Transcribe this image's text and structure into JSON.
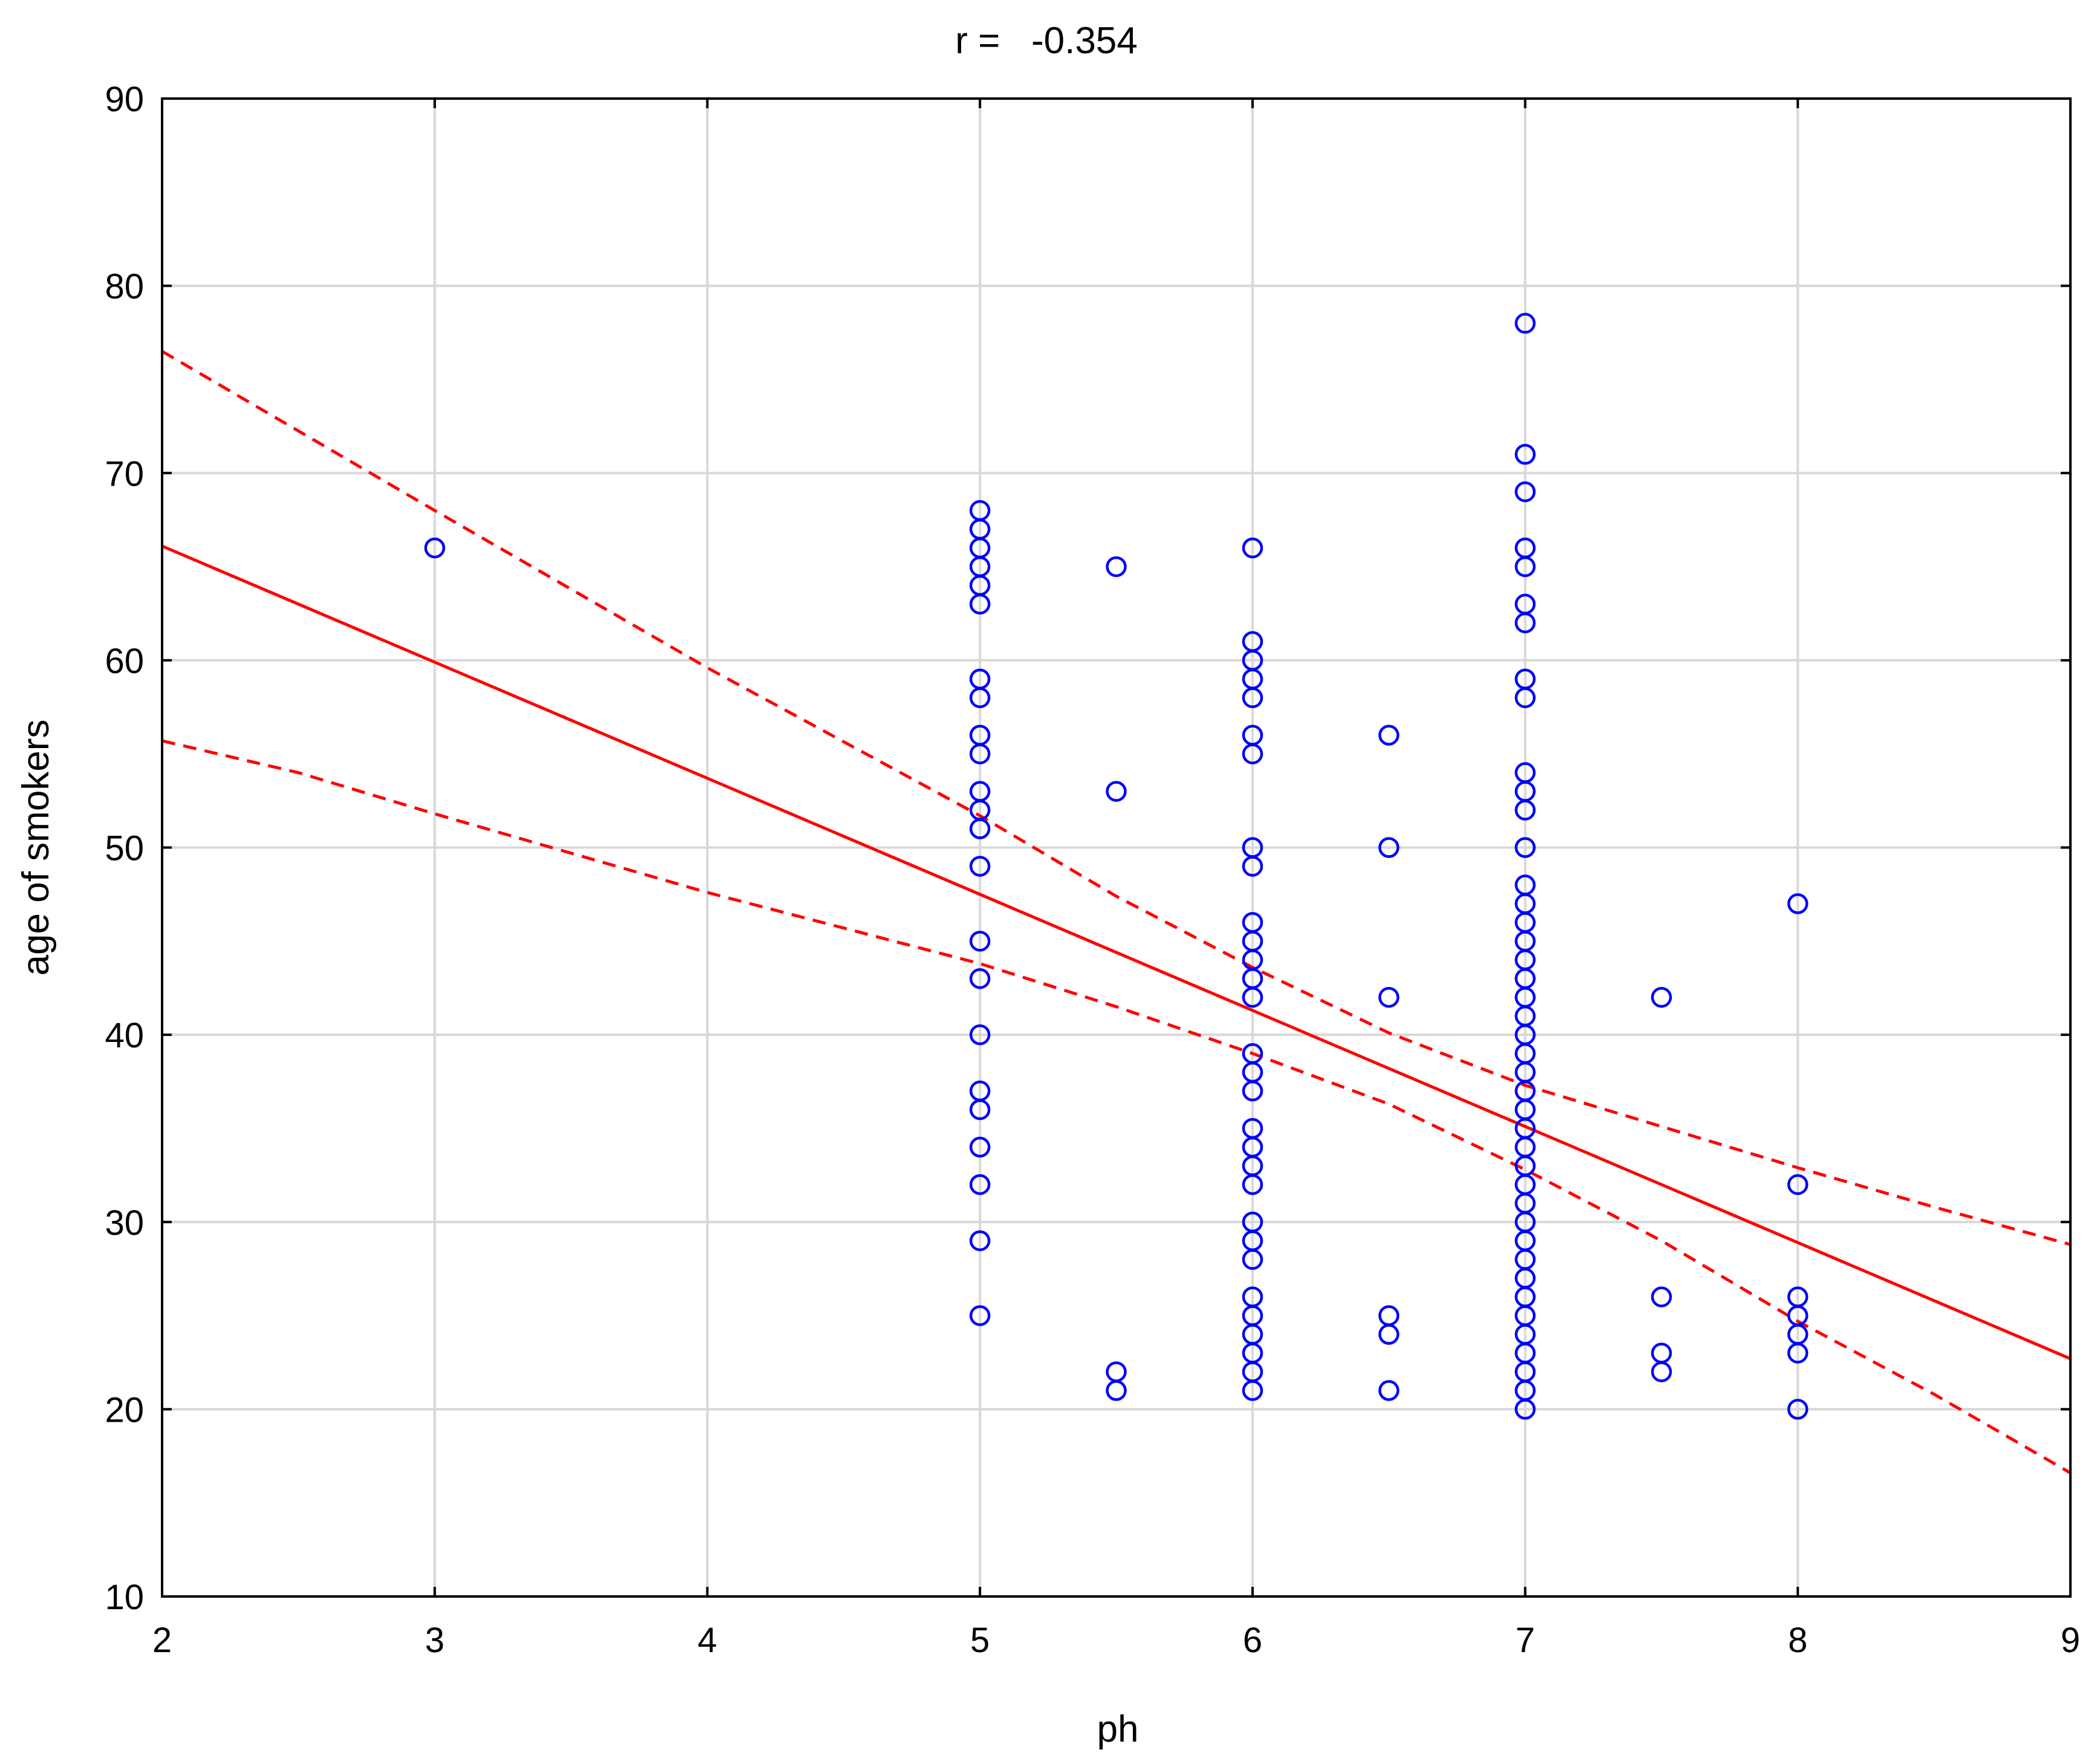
{
  "chart_data": {
    "type": "scatter",
    "title": "r =   -0.354",
    "xlabel": "ph",
    "ylabel": "age of smokers",
    "xlim": [
      2,
      9
    ],
    "ylim": [
      10,
      90
    ],
    "xticks": [
      2,
      3,
      4,
      5,
      6,
      7,
      8,
      9
    ],
    "yticks": [
      10,
      20,
      30,
      40,
      50,
      60,
      70,
      80,
      90
    ],
    "grid": true,
    "legend": "none",
    "colors": {
      "points": "#0000ff",
      "fit": "#ff0000",
      "grid": "#d8d8d8",
      "axes": "#000000"
    },
    "points": [
      [
        3,
        66
      ],
      [
        5,
        68
      ],
      [
        5,
        67
      ],
      [
        5,
        66
      ],
      [
        5,
        65
      ],
      [
        5,
        64
      ],
      [
        5,
        63
      ],
      [
        5,
        59
      ],
      [
        5,
        58
      ],
      [
        5,
        56
      ],
      [
        5,
        55
      ],
      [
        5,
        53
      ],
      [
        5,
        52
      ],
      [
        5,
        51
      ],
      [
        5,
        49
      ],
      [
        5,
        45
      ],
      [
        5,
        43
      ],
      [
        5,
        40
      ],
      [
        5,
        37
      ],
      [
        5,
        36
      ],
      [
        5,
        34
      ],
      [
        5,
        32
      ],
      [
        5,
        29
      ],
      [
        5,
        25
      ],
      [
        5.5,
        65
      ],
      [
        5.5,
        53
      ],
      [
        5.5,
        22
      ],
      [
        5.5,
        21
      ],
      [
        6,
        66
      ],
      [
        6,
        61
      ],
      [
        6,
        60
      ],
      [
        6,
        59
      ],
      [
        6,
        58
      ],
      [
        6,
        56
      ],
      [
        6,
        55
      ],
      [
        6,
        50
      ],
      [
        6,
        49
      ],
      [
        6,
        46
      ],
      [
        6,
        45
      ],
      [
        6,
        44
      ],
      [
        6,
        43
      ],
      [
        6,
        42
      ],
      [
        6,
        39
      ],
      [
        6,
        38
      ],
      [
        6,
        37
      ],
      [
        6,
        35
      ],
      [
        6,
        34
      ],
      [
        6,
        33
      ],
      [
        6,
        32
      ],
      [
        6,
        30
      ],
      [
        6,
        29
      ],
      [
        6,
        28
      ],
      [
        6,
        26
      ],
      [
        6,
        25
      ],
      [
        6,
        24
      ],
      [
        6,
        23
      ],
      [
        6,
        22
      ],
      [
        6,
        21
      ],
      [
        6.5,
        56
      ],
      [
        6.5,
        50
      ],
      [
        6.5,
        42
      ],
      [
        6.5,
        25
      ],
      [
        6.5,
        24
      ],
      [
        6.5,
        21
      ],
      [
        7,
        78
      ],
      [
        7,
        71
      ],
      [
        7,
        69
      ],
      [
        7,
        66
      ],
      [
        7,
        65
      ],
      [
        7,
        63
      ],
      [
        7,
        62
      ],
      [
        7,
        59
      ],
      [
        7,
        58
      ],
      [
        7,
        54
      ],
      [
        7,
        53
      ],
      [
        7,
        52
      ],
      [
        7,
        50
      ],
      [
        7,
        48
      ],
      [
        7,
        47
      ],
      [
        7,
        46
      ],
      [
        7,
        45
      ],
      [
        7,
        44
      ],
      [
        7,
        43
      ],
      [
        7,
        42
      ],
      [
        7,
        41
      ],
      [
        7,
        40
      ],
      [
        7,
        39
      ],
      [
        7,
        38
      ],
      [
        7,
        37
      ],
      [
        7,
        36
      ],
      [
        7,
        35
      ],
      [
        7,
        34
      ],
      [
        7,
        33
      ],
      [
        7,
        32
      ],
      [
        7,
        31
      ],
      [
        7,
        30
      ],
      [
        7,
        29
      ],
      [
        7,
        28
      ],
      [
        7,
        27
      ],
      [
        7,
        26
      ],
      [
        7,
        25
      ],
      [
        7,
        24
      ],
      [
        7,
        23
      ],
      [
        7,
        22
      ],
      [
        7,
        21
      ],
      [
        7,
        20
      ],
      [
        7.5,
        42
      ],
      [
        7.5,
        26
      ],
      [
        7.5,
        23
      ],
      [
        7.5,
        22
      ],
      [
        8,
        47
      ],
      [
        8,
        32
      ],
      [
        8,
        26
      ],
      [
        8,
        25
      ],
      [
        8,
        24
      ],
      [
        8,
        23
      ],
      [
        8,
        20
      ]
    ],
    "regression": {
      "x": [
        2,
        9
      ],
      "y": [
        66.1,
        22.7
      ]
    },
    "confidence_upper": {
      "x": [
        2,
        3,
        4,
        5,
        5.5,
        6,
        6.5,
        7,
        7.5,
        8,
        8.5,
        9
      ],
      "y": [
        76.5,
        68.0,
        59.6,
        51.7,
        47.4,
        43.6,
        40.1,
        37.3,
        35.1,
        32.9,
        30.8,
        28.8
      ]
    },
    "confidence_lower": {
      "x": [
        2,
        2.5,
        3,
        4,
        5,
        5.5,
        6,
        6.5,
        7,
        7.5,
        8,
        8.5,
        9
      ],
      "y": [
        55.7,
        54.0,
        51.8,
        47.6,
        43.8,
        41.5,
        39.0,
        36.3,
        32.8,
        29.0,
        24.7,
        20.8,
        16.6
      ]
    }
  }
}
